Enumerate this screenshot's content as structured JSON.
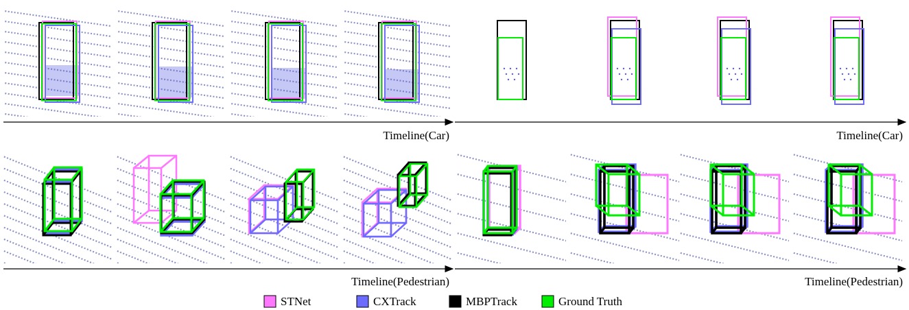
{
  "top_row": {
    "left_label": "Timeline(Car)",
    "right_label": "Timeline(Car)"
  },
  "bottom_row": {
    "left_label": "Timeline(Pedestrian)",
    "right_label": "Timeline(Pedestrian)"
  },
  "legend": [
    {
      "name": "STNet",
      "color": "#ff77ff"
    },
    {
      "name": "CXTrack",
      "color": "#6b6bff"
    },
    {
      "name": "MBPTrack",
      "color": "#000000"
    },
    {
      "name": "Ground Truth",
      "color": "#00ee00"
    }
  ]
}
